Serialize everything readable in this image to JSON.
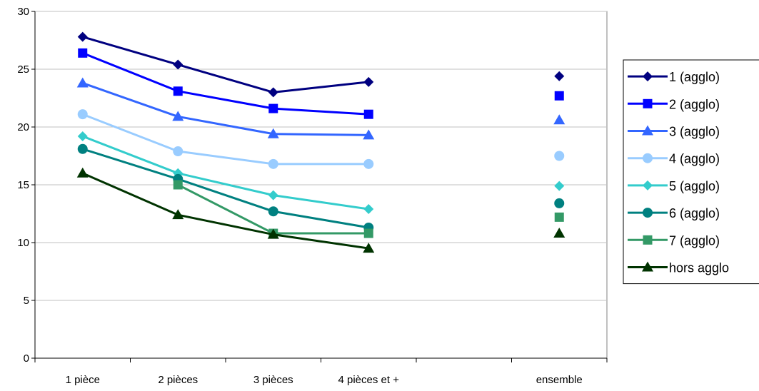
{
  "chart_data": {
    "type": "line",
    "title": "",
    "xlabel": "",
    "ylabel": "",
    "categories": [
      "1 pièce",
      "2 pièces",
      "3 pièces",
      "4 pièces et +",
      "",
      "ensemble"
    ],
    "ylim": [
      0,
      30
    ],
    "yticks": [
      0,
      5,
      10,
      15,
      20,
      25,
      30
    ],
    "grid": "horizontal",
    "legend_position": "right",
    "series": [
      {
        "name": "1 (agglo)",
        "values": [
          27.8,
          25.4,
          23.0,
          23.9,
          null,
          24.4
        ],
        "color": "#000080",
        "marker": "diamond",
        "line_width": 3
      },
      {
        "name": "2 (agglo)",
        "values": [
          26.4,
          23.1,
          21.6,
          21.1,
          null,
          22.7
        ],
        "color": "#0000ff",
        "marker": "square",
        "line_width": 3
      },
      {
        "name": "3 (agglo)",
        "values": [
          23.8,
          20.9,
          19.4,
          19.3,
          null,
          20.6
        ],
        "color": "#3366ff",
        "marker": "triangle",
        "line_width": 3
      },
      {
        "name": "4 (agglo)",
        "values": [
          21.1,
          17.9,
          16.8,
          16.8,
          null,
          17.5
        ],
        "color": "#99ccff",
        "marker": "circle",
        "line_width": 3
      },
      {
        "name": "5 (agglo)",
        "values": [
          19.2,
          16.0,
          14.1,
          12.9,
          null,
          14.9
        ],
        "color": "#33cccc",
        "marker": "diamond",
        "line_width": 3
      },
      {
        "name": "6 (agglo)",
        "values": [
          18.1,
          15.5,
          12.7,
          11.3,
          null,
          13.4
        ],
        "color": "#008080",
        "marker": "circle",
        "line_width": 3
      },
      {
        "name": "7 (agglo)",
        "values": [
          null,
          15.0,
          10.8,
          10.8,
          null,
          12.2
        ],
        "color": "#339966",
        "marker": "square",
        "line_width": 3
      },
      {
        "name": "hors agglo",
        "values": [
          16.0,
          12.4,
          10.7,
          9.5,
          null,
          10.8
        ],
        "color": "#003300",
        "marker": "triangle",
        "line_width": 3
      }
    ]
  }
}
